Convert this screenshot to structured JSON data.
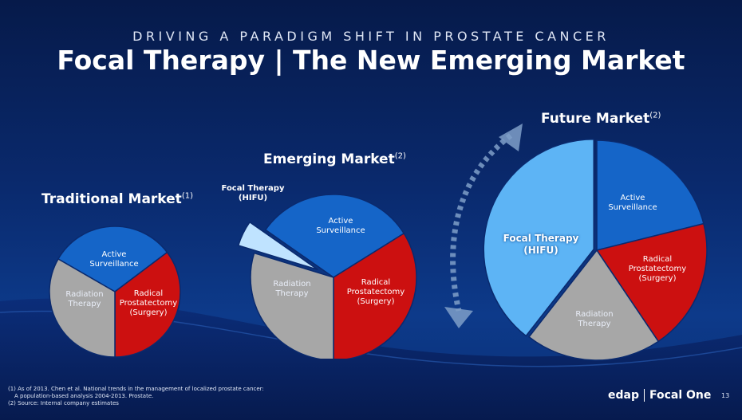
{
  "header": {
    "kicker": "DRIVING A PARADIGM SHIFT IN PROSTATE CANCER",
    "title": "Focal Therapy | The New Emerging Market"
  },
  "colors": {
    "active": "#1565c8",
    "radical": "#cc1010",
    "radiation": "#a7a7a7",
    "focal": "#5db4f5",
    "arrow": "#7f9fc8"
  },
  "traditional": {
    "title": "Traditional Market",
    "sup": "(1)",
    "labels": {
      "active": [
        "Active",
        "Surveillance"
      ],
      "radical": [
        "Radical",
        "Prostatectomy",
        "(Surgery)"
      ],
      "radiation": [
        "Radiation",
        "Therapy"
      ]
    }
  },
  "emerging": {
    "title": "Emerging Market",
    "sup": "(2)",
    "focal_callout": [
      "Focal Therapy",
      "(HIFU)"
    ],
    "labels": {
      "active": [
        "Active",
        "Surveillance"
      ],
      "radical": [
        "Radical",
        "Prostatectomy",
        "(Surgery)"
      ],
      "radiation": [
        "Radiation",
        "Therapy"
      ]
    }
  },
  "future": {
    "title": "Future Market",
    "sup": "(2)",
    "labels": {
      "focal": [
        "Focal Therapy",
        "(HIFU)"
      ],
      "active": [
        "Active",
        "Surveillance"
      ],
      "radical": [
        "Radical",
        "Prostatectomy",
        "(Surgery)"
      ],
      "radiation": [
        "Radiation",
        "Therapy"
      ]
    }
  },
  "footnotes": [
    "(1) As of 2013. Chen et al. National trends in the management of localized prostate cancer:",
    "     A population-based analysis 2004-2013. Prostate.",
    "(2) Source: Internal company estimates"
  ],
  "logo": {
    "left": "edap",
    "right": "Focal One"
  },
  "page_number": "13"
}
